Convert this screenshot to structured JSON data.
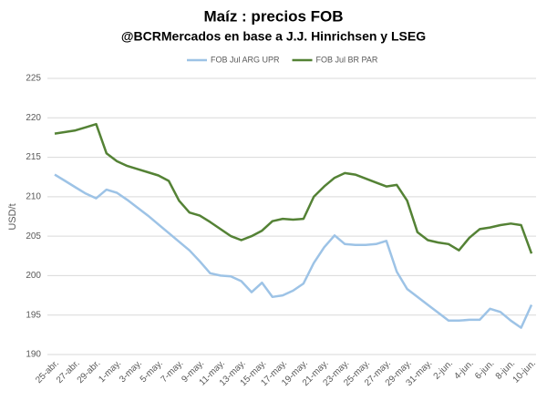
{
  "chart_data": {
    "type": "line",
    "title": "Maíz : precios FOB",
    "subtitle": "@BCRMercados en base a J.J. Hinrichsen y LSEG",
    "y_label": "USD/t",
    "categories": [
      "25-abr.",
      null,
      "27-abr.",
      null,
      "29-abr.",
      null,
      "1-may.",
      null,
      "3-may.",
      null,
      "5-may.",
      null,
      "7-may.",
      null,
      "9-may.",
      null,
      "11-may.",
      null,
      "13-may.",
      null,
      "15-may.",
      null,
      "17-may.",
      null,
      "19-may.",
      null,
      "21-may.",
      null,
      "23-may.",
      null,
      "25-may.",
      null,
      "27-may.",
      null,
      "29-may.",
      null,
      "31-may.",
      null,
      "2-jun.",
      null,
      "4-jun.",
      null,
      "6-jun.",
      null,
      "8-jun.",
      null,
      "10-jun."
    ],
    "series": [
      {
        "name": "FOB Jul ARG UPR",
        "color": "#9dc3e6",
        "values": [
          212.8,
          212,
          211.2,
          210.4,
          209.8,
          210.9,
          210.5,
          209.6,
          208.6,
          207.6,
          206.5,
          205.4,
          204.3,
          203.2,
          201.8,
          200.3,
          200,
          199.9,
          199.3,
          197.9,
          199.1,
          197.3,
          197.5,
          198.1,
          199,
          201.6,
          203.6,
          205.1,
          204,
          203.9,
          203.9,
          204,
          204.4,
          200.5,
          198.3,
          197.3,
          196.3,
          195.3,
          194.3,
          194.3,
          194.4,
          194.4,
          195.8,
          195.4,
          194.3,
          193.4,
          196.3
        ]
      },
      {
        "name": "FOB Jul BR PAR",
        "color": "#548235",
        "values": [
          218,
          218.2,
          218.4,
          218.8,
          219.2,
          215.5,
          214.5,
          213.9,
          213.5,
          213.1,
          212.7,
          212,
          209.5,
          208,
          207.6,
          206.8,
          205.9,
          205,
          204.5,
          205,
          205.7,
          206.9,
          207.2,
          207.1,
          207.2,
          210,
          211.3,
          212.4,
          213,
          212.8,
          212.3,
          211.8,
          211.3,
          211.5,
          209.5,
          205.5,
          204.5,
          204.2,
          204,
          203.2,
          204.8,
          205.9,
          206.1,
          206.4,
          206.6,
          206.4,
          202.8
        ]
      }
    ],
    "ylim": [
      190,
      225
    ],
    "yticks": [
      190,
      195,
      200,
      205,
      210,
      215,
      220,
      225
    ],
    "grid": true,
    "legend": "top"
  }
}
